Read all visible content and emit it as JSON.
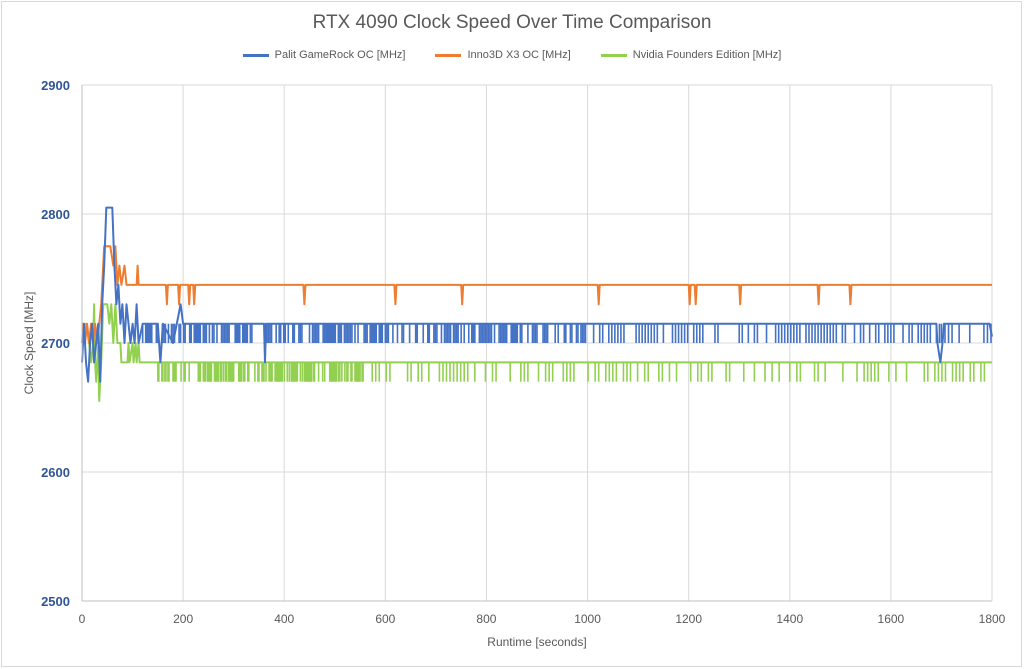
{
  "chart_data": {
    "type": "line",
    "title": "RTX 4090 Clock Speed Over Time Comparison",
    "xlabel": "Runtime [seconds]",
    "ylabel": "Clock Speed [MHz]",
    "xlim": [
      0,
      1800
    ],
    "ylim": [
      2500,
      2900
    ],
    "x_ticks": [
      0,
      200,
      400,
      600,
      800,
      1000,
      1200,
      1400,
      1600,
      1800
    ],
    "y_ticks": [
      2500,
      2600,
      2700,
      2800,
      2900
    ],
    "grid": "vertical",
    "legend": "top",
    "series": [
      {
        "name": "Palit GameRock OC [MHz]",
        "color": "#4472c4",
        "base": 2700,
        "points": [
          [
            0,
            2685
          ],
          [
            4,
            2715
          ],
          [
            8,
            2685
          ],
          [
            12,
            2670
          ],
          [
            16,
            2700
          ],
          [
            20,
            2715
          ],
          [
            24,
            2685
          ],
          [
            28,
            2700
          ],
          [
            32,
            2715
          ],
          [
            36,
            2670
          ],
          [
            40,
            2730
          ],
          [
            44,
            2760
          ],
          [
            48,
            2805
          ],
          [
            60,
            2805
          ],
          [
            64,
            2760
          ],
          [
            68,
            2730
          ],
          [
            72,
            2745
          ],
          [
            76,
            2715
          ],
          [
            80,
            2730
          ],
          [
            84,
            2700
          ],
          [
            88,
            2730
          ],
          [
            92,
            2715
          ],
          [
            96,
            2700
          ],
          [
            100,
            2715
          ],
          [
            104,
            2700
          ],
          [
            108,
            2730
          ],
          [
            112,
            2700
          ],
          [
            120,
            2715
          ],
          [
            150,
            2715
          ],
          [
            155,
            2685
          ],
          [
            160,
            2715
          ],
          [
            180,
            2700
          ],
          [
            195,
            2730
          ],
          [
            200,
            2715
          ],
          [
            360,
            2715
          ],
          [
            362,
            2685
          ],
          [
            364,
            2715
          ],
          [
            1690,
            2715
          ],
          [
            1692,
            2700
          ],
          [
            1698,
            2685
          ],
          [
            1702,
            2700
          ],
          [
            1705,
            2715
          ],
          [
            1795,
            2715
          ],
          [
            1800,
            2705
          ]
        ],
        "dip_value": 2715,
        "dip_ranges": [
          [
            120,
            1000,
            3
          ],
          [
            1000,
            1700,
            6
          ],
          [
            1700,
            1800,
            7
          ]
        ]
      },
      {
        "name": "Inno3D X3 OC [MHz]",
        "color": "#ed7d31",
        "base": 2745,
        "points": [
          [
            0,
            2700
          ],
          [
            2,
            2715
          ],
          [
            6,
            2700
          ],
          [
            10,
            2715
          ],
          [
            14,
            2700
          ],
          [
            18,
            2715
          ],
          [
            22,
            2700
          ],
          [
            26,
            2715
          ],
          [
            30,
            2700
          ],
          [
            34,
            2715
          ],
          [
            38,
            2730
          ],
          [
            44,
            2775
          ],
          [
            56,
            2775
          ],
          [
            62,
            2760
          ],
          [
            66,
            2775
          ],
          [
            70,
            2745
          ],
          [
            74,
            2760
          ],
          [
            78,
            2745
          ],
          [
            84,
            2760
          ],
          [
            88,
            2745
          ],
          [
            108,
            2745
          ],
          [
            110,
            2760
          ],
          [
            112,
            2745
          ],
          [
            166,
            2745
          ],
          [
            168,
            2730
          ],
          [
            170,
            2745
          ],
          [
            190,
            2745
          ],
          [
            192,
            2730
          ],
          [
            194,
            2745
          ],
          [
            210,
            2745
          ],
          [
            212,
            2730
          ],
          [
            214,
            2745
          ],
          [
            220,
            2745
          ],
          [
            222,
            2730
          ],
          [
            224,
            2745
          ],
          [
            438,
            2745
          ],
          [
            440,
            2730
          ],
          [
            442,
            2745
          ],
          [
            618,
            2745
          ],
          [
            620,
            2730
          ],
          [
            622,
            2745
          ],
          [
            750,
            2745
          ],
          [
            752,
            2730
          ],
          [
            754,
            2745
          ],
          [
            1020,
            2745
          ],
          [
            1022,
            2730
          ],
          [
            1024,
            2745
          ],
          [
            1200,
            2745
          ],
          [
            1202,
            2730
          ],
          [
            1204,
            2745
          ],
          [
            1212,
            2745
          ],
          [
            1214,
            2730
          ],
          [
            1216,
            2745
          ],
          [
            1300,
            2745
          ],
          [
            1302,
            2730
          ],
          [
            1304,
            2745
          ],
          [
            1455,
            2745
          ],
          [
            1457,
            2730
          ],
          [
            1459,
            2745
          ],
          [
            1518,
            2745
          ],
          [
            1520,
            2730
          ],
          [
            1522,
            2745
          ],
          [
            1800,
            2745
          ]
        ]
      },
      {
        "name": "Nvidia Founders Edition [MHz]",
        "color": "#92d050",
        "base": 2685,
        "points": [
          [
            0,
            2700
          ],
          [
            8,
            2715
          ],
          [
            14,
            2700
          ],
          [
            18,
            2685
          ],
          [
            22,
            2700
          ],
          [
            24,
            2730
          ],
          [
            26,
            2685
          ],
          [
            28,
            2670
          ],
          [
            32,
            2700
          ],
          [
            34,
            2655
          ],
          [
            38,
            2685
          ],
          [
            42,
            2730
          ],
          [
            50,
            2730
          ],
          [
            54,
            2715
          ],
          [
            58,
            2730
          ],
          [
            62,
            2700
          ],
          [
            66,
            2730
          ],
          [
            70,
            2700
          ],
          [
            76,
            2700
          ],
          [
            78,
            2685
          ],
          [
            90,
            2685
          ],
          [
            92,
            2700
          ],
          [
            94,
            2685
          ],
          [
            100,
            2700
          ],
          [
            102,
            2685
          ],
          [
            106,
            2700
          ],
          [
            108,
            2685
          ],
          [
            112,
            2700
          ],
          [
            114,
            2685
          ],
          [
            150,
            2685
          ],
          [
            1800,
            2685
          ]
        ],
        "dip_value": 2670,
        "dip_ranges": [
          [
            150,
            560,
            2
          ],
          [
            560,
            1800,
            7
          ]
        ]
      }
    ]
  }
}
